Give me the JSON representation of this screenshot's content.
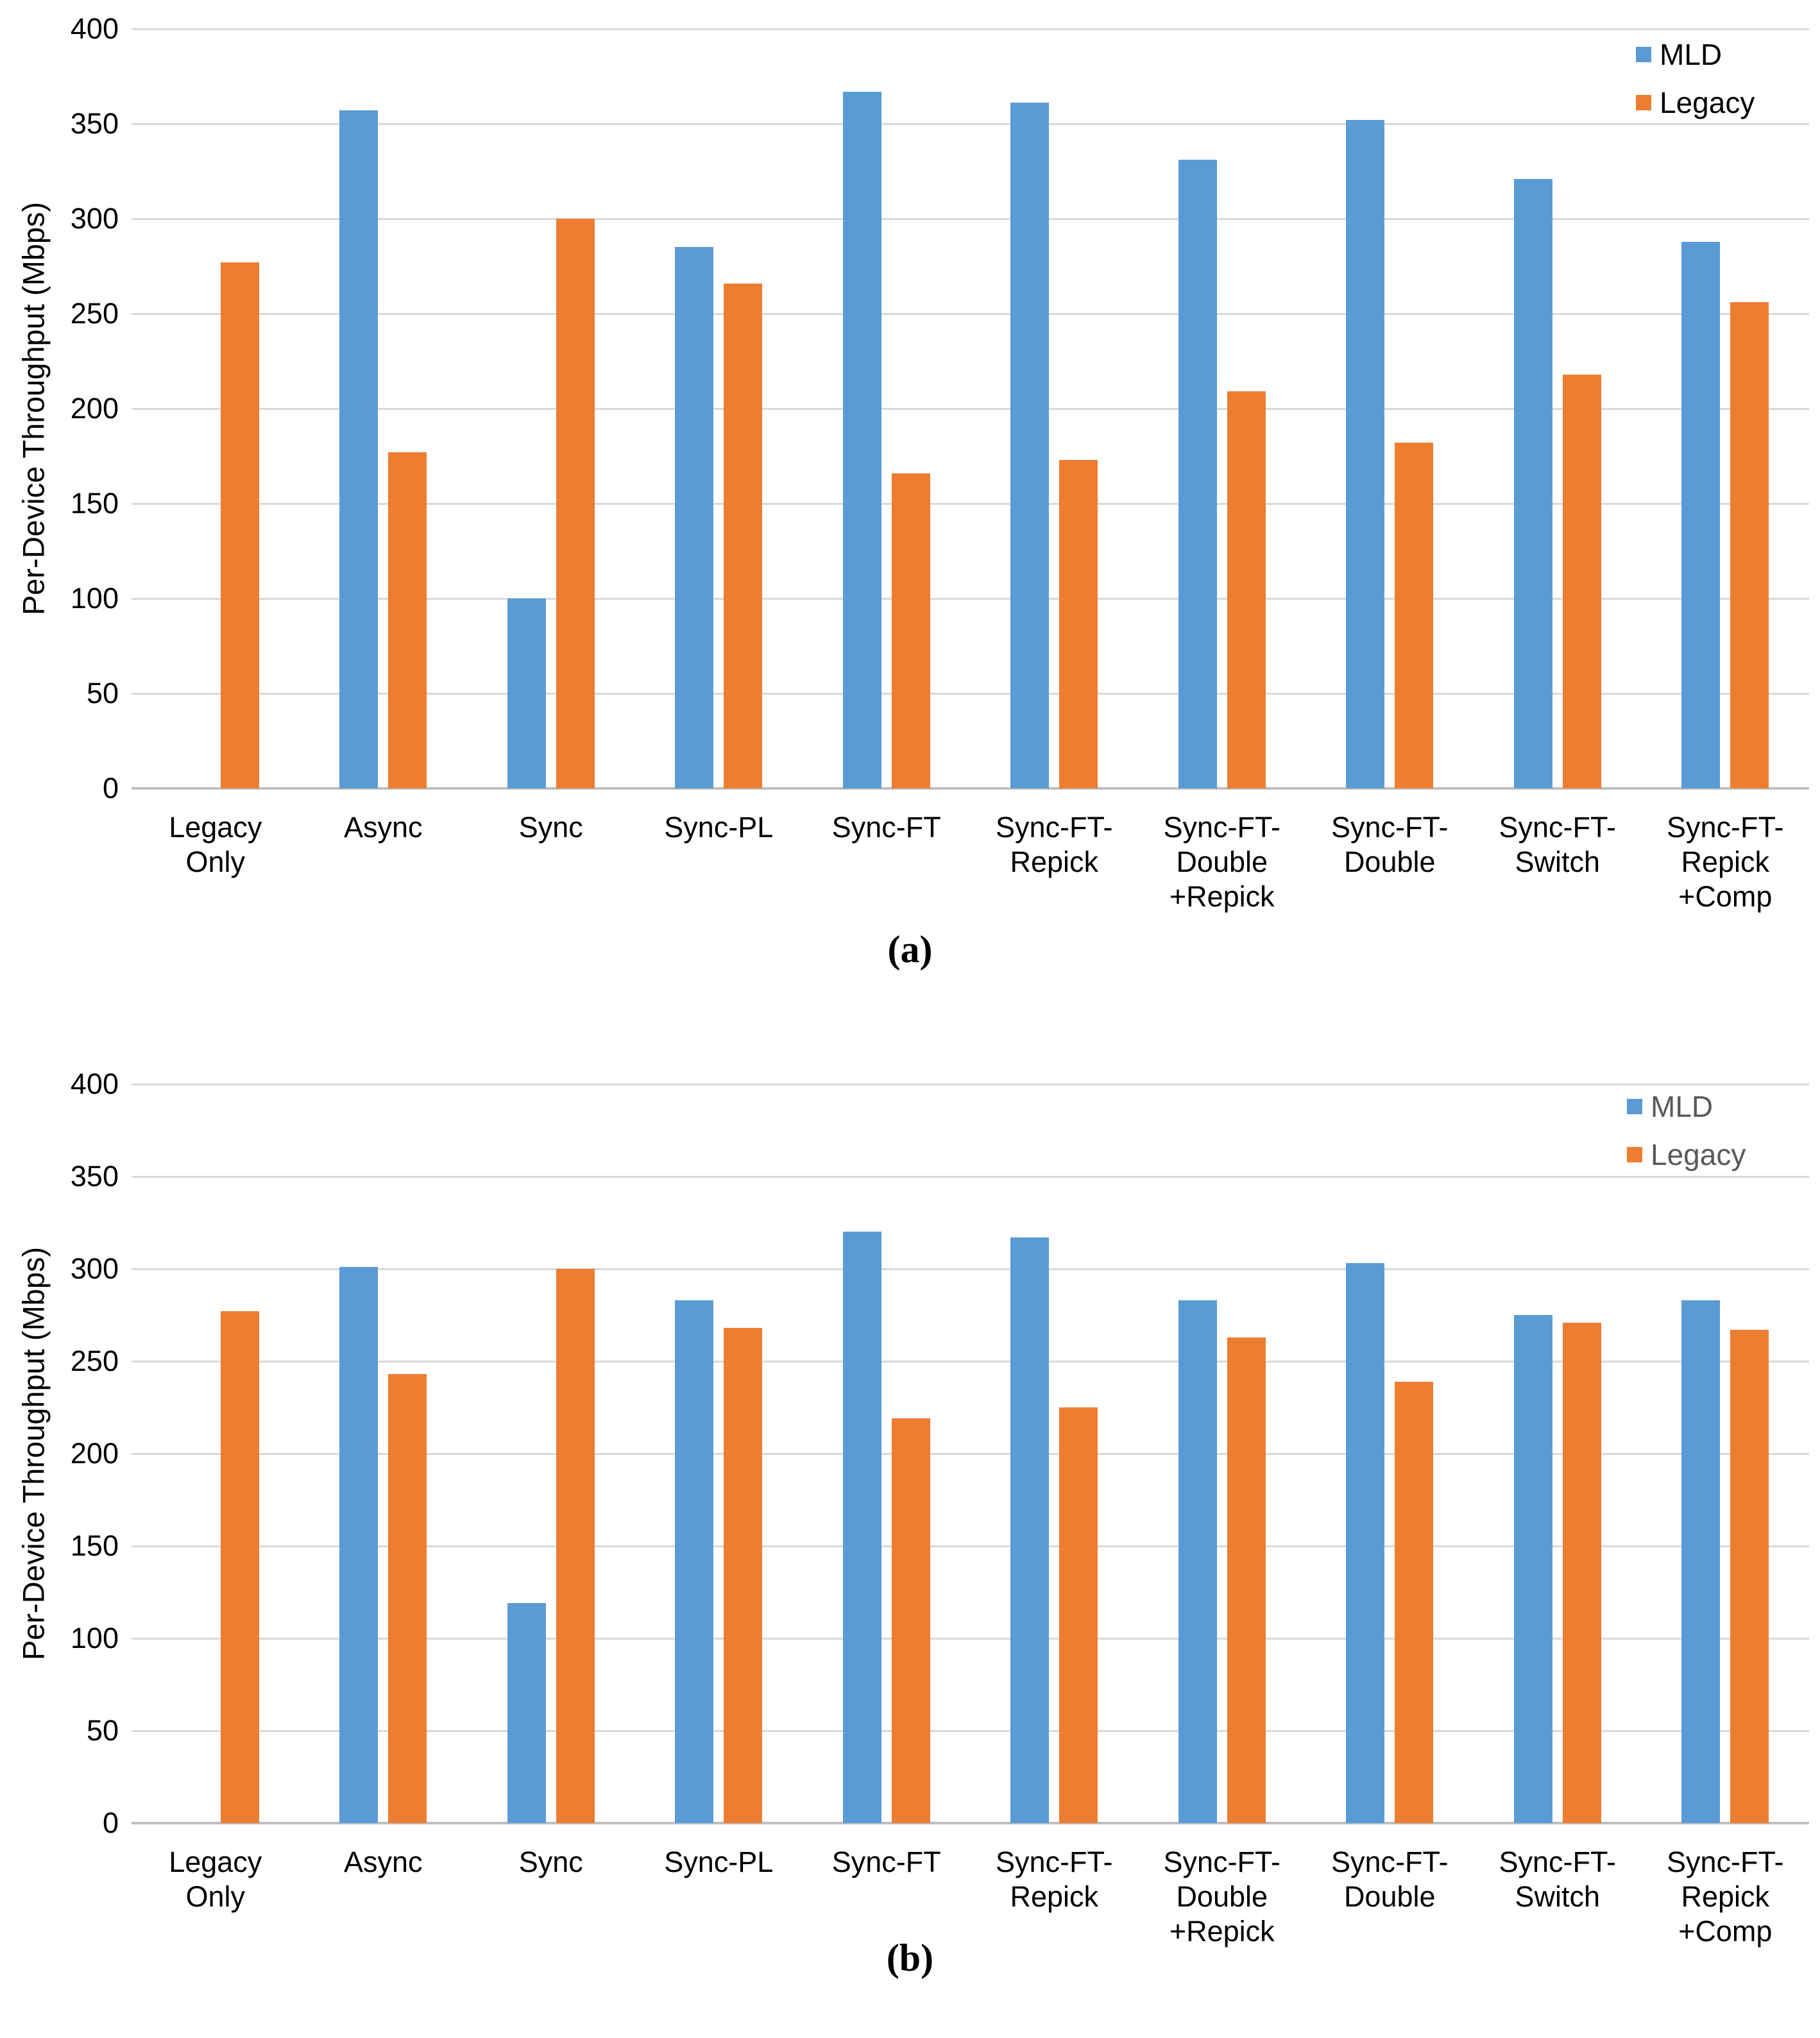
{
  "page": {
    "background": "#FFFFFF"
  },
  "colors": {
    "mld": "#5B9BD5",
    "legacy": "#ED7D31",
    "gridline": "#D9D9D9",
    "axis_line": "#BFBFBF",
    "tick_label": "#000000",
    "category_label": "#000000"
  },
  "chart_data": [
    {
      "panel": "a",
      "type": "bar",
      "caption": "(a)",
      "ylabel": "Per-Device Throughput (Mbps)",
      "ylim": [
        0,
        400
      ],
      "yticks": [
        400,
        350,
        300,
        250,
        200,
        150,
        100,
        50,
        0
      ],
      "grid": true,
      "legend_position": "top-right",
      "legend_text_color": "#000000",
      "categories": [
        [
          "Legacy",
          "Only"
        ],
        [
          "Async"
        ],
        [
          "Sync"
        ],
        [
          "Sync-PL"
        ],
        [
          "Sync-FT"
        ],
        [
          "Sync-FT-",
          "Repick"
        ],
        [
          "Sync-FT-",
          "Double",
          "+Repick"
        ],
        [
          "Sync-FT-",
          "Double"
        ],
        [
          "Sync-FT-",
          "Switch"
        ],
        [
          "Sync-FT-",
          "Repick",
          "+Comp"
        ]
      ],
      "series": [
        {
          "name": "MLD",
          "color": "#5B9BD5",
          "values": [
            null,
            357,
            100,
            285,
            367,
            361,
            331,
            352,
            321,
            288
          ]
        },
        {
          "name": "Legacy",
          "color": "#ED7D31",
          "values": [
            277,
            177,
            300,
            266,
            166,
            173,
            209,
            182,
            218,
            256
          ]
        }
      ]
    },
    {
      "panel": "b",
      "type": "bar",
      "caption": "(b)",
      "ylabel": "Per-Device Throughput (Mbps)",
      "ylim": [
        0,
        400
      ],
      "yticks": [
        400,
        350,
        300,
        250,
        200,
        150,
        100,
        50,
        0
      ],
      "grid": true,
      "legend_position": "top-right",
      "legend_text_color": "#595959",
      "categories": [
        [
          "Legacy",
          "Only"
        ],
        [
          "Async"
        ],
        [
          "Sync"
        ],
        [
          "Sync-PL"
        ],
        [
          "Sync-FT"
        ],
        [
          "Sync-FT-",
          "Repick"
        ],
        [
          "Sync-FT-",
          "Double",
          "+Repick"
        ],
        [
          "Sync-FT-",
          "Double"
        ],
        [
          "Sync-FT-",
          "Switch"
        ],
        [
          "Sync-FT-",
          "Repick",
          "+Comp"
        ]
      ],
      "series": [
        {
          "name": "MLD",
          "color": "#5B9BD5",
          "values": [
            null,
            301,
            119,
            283,
            320,
            317,
            283,
            303,
            275,
            283
          ]
        },
        {
          "name": "Legacy",
          "color": "#ED7D31",
          "values": [
            277,
            243,
            300,
            268,
            219,
            225,
            263,
            239,
            271,
            267
          ]
        }
      ]
    }
  ]
}
